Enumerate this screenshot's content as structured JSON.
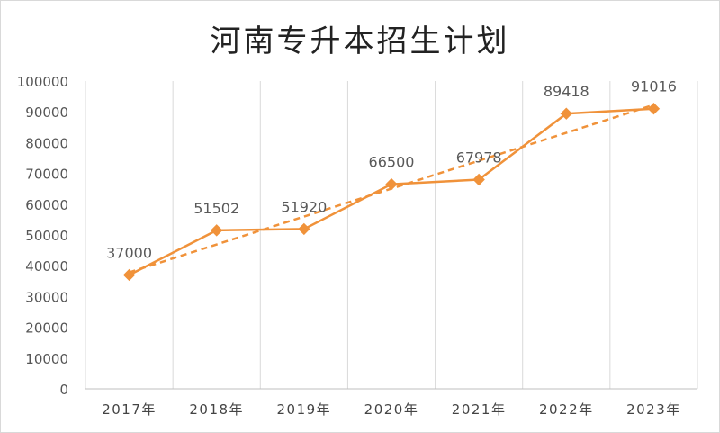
{
  "chart_data": {
    "type": "line",
    "title": "河南专升本招生计划",
    "categories": [
      "2017年",
      "2018年",
      "2019年",
      "2020年",
      "2021年",
      "2022年",
      "2023年"
    ],
    "series": [
      {
        "values": [
          37000,
          51502,
          51920,
          66500,
          67978,
          89418,
          91016
        ],
        "color": "#f0923a",
        "marker": "diamond"
      }
    ],
    "data_labels": [
      "37000",
      "51502",
      "51920",
      "66500",
      "67978",
      "89418",
      "91016"
    ],
    "trendline": {
      "type": "linear",
      "style": "dashed",
      "color": "#f0923a"
    },
    "y_ticks": [
      "0",
      "10000",
      "20000",
      "30000",
      "40000",
      "50000",
      "60000",
      "70000",
      "80000",
      "90000",
      "100000"
    ],
    "ylim": [
      0,
      100000
    ],
    "xlabel": "",
    "ylabel": "",
    "grid": "vertical",
    "legend": "none"
  }
}
